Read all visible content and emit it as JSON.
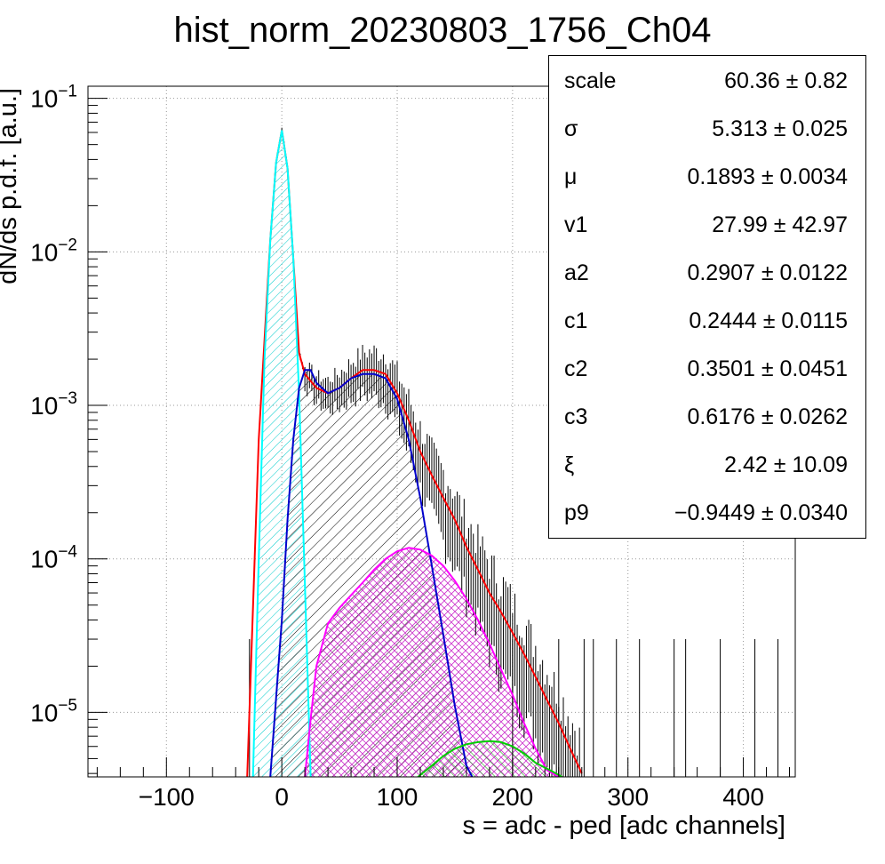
{
  "title": "hist_norm_20230803_1756_Ch04",
  "chart_data": {
    "type": "histogram",
    "title": "hist_norm_20230803_1756_Ch04",
    "xlabel": "s = adc - ped [adc channels]",
    "ylabel": "dN/ds p.d.f. [a.u.]",
    "x_range": [
      -168,
      445
    ],
    "y_range": [
      3.8e-06,
      0.12
    ],
    "y_log": true,
    "grid": true,
    "x_ticks": [
      -100,
      0,
      100,
      200,
      300,
      400
    ],
    "x_tick_labels": [
      "−100",
      "0",
      "100",
      "200",
      "300",
      "400"
    ],
    "y_ticks": [
      1e-05,
      0.0001,
      0.001,
      0.01,
      0.1
    ],
    "y_tick_labels": [
      {
        "base": "10",
        "exp": "−5"
      },
      {
        "base": "10",
        "exp": "−4"
      },
      {
        "base": "10",
        "exp": "−3"
      },
      {
        "base": "10",
        "exp": "−2"
      },
      {
        "base": "10",
        "exp": "−1"
      }
    ],
    "series": [
      {
        "color": "#ff0000",
        "style": "line",
        "x": [
          -30,
          -20,
          -10,
          -5,
          0,
          5,
          10,
          15,
          20,
          30,
          40,
          50,
          60,
          70,
          80,
          90,
          100,
          110,
          120,
          130,
          140,
          150,
          160,
          170,
          180,
          190,
          200,
          210,
          220,
          230,
          240,
          250,
          260
        ],
        "y": [
          3.8e-06,
          0.0006,
          0.012,
          0.038,
          0.062,
          0.035,
          0.009,
          0.0022,
          0.0016,
          0.0013,
          0.0012,
          0.0013,
          0.0015,
          0.0017,
          0.0017,
          0.0016,
          0.0012,
          0.0008,
          0.0005,
          0.00035,
          0.00025,
          0.00018,
          0.00012,
          8.5e-05,
          6e-05,
          4.5e-05,
          3.3e-05,
          2.4e-05,
          1.7e-05,
          1.2e-05,
          8.5e-06,
          5.8e-06,
          4e-06
        ]
      },
      {
        "color": "#00ffff",
        "style": "filled",
        "hatch": true,
        "x": [
          -25,
          -20,
          -15,
          -10,
          -5,
          0,
          5,
          10,
          15,
          20,
          25
        ],
        "y": [
          3.8e-06,
          0.0001,
          0.002,
          0.012,
          0.038,
          0.062,
          0.035,
          0.009,
          0.0012,
          7e-05,
          3.8e-06
        ]
      },
      {
        "color": "#0000cc",
        "style": "filled",
        "hatch": true,
        "x": [
          -10,
          0,
          5,
          10,
          15,
          20,
          25,
          30,
          40,
          50,
          60,
          70,
          80,
          90,
          100,
          110,
          120,
          130,
          140,
          150,
          160,
          165
        ],
        "y": [
          3.8e-06,
          4e-05,
          0.00018,
          0.0006,
          0.0013,
          0.0017,
          0.0017,
          0.0014,
          0.0012,
          0.0013,
          0.0015,
          0.0016,
          0.0016,
          0.0015,
          0.0011,
          0.0006,
          0.00025,
          9e-05,
          3.2e-05,
          1.1e-05,
          4.5e-06,
          3.8e-06
        ]
      },
      {
        "color": "#ff00ff",
        "style": "filled",
        "hatch": true,
        "x": [
          20,
          25,
          30,
          40,
          50,
          60,
          70,
          80,
          90,
          100,
          110,
          120,
          130,
          140,
          150,
          160,
          170,
          180,
          190,
          200,
          210,
          220,
          230,
          240
        ],
        "y": [
          3.8e-06,
          9e-06,
          2e-05,
          3.8e-05,
          4.8e-05,
          5.8e-05,
          7e-05,
          8.5e-05,
          0.0001,
          0.000112,
          0.000118,
          0.000115,
          0.000105,
          9e-05,
          7.2e-05,
          5.5e-05,
          4e-05,
          2.8e-05,
          1.9e-05,
          1.3e-05,
          8.5e-06,
          5.8e-06,
          4.2e-06,
          3.8e-06
        ]
      },
      {
        "color": "#00cc00",
        "style": "filled",
        "hatch": true,
        "x": [
          118,
          130,
          140,
          150,
          160,
          170,
          180,
          190,
          200,
          210,
          220,
          235,
          243
        ],
        "y": [
          3.8e-06,
          4.5e-06,
          5.2e-06,
          5.8e-06,
          6.2e-06,
          6.4e-06,
          6.5e-06,
          6.4e-06,
          6e-06,
          5.4e-06,
          4.7e-06,
          4.1e-06,
          3.8e-06
        ]
      }
    ]
  },
  "stats": {
    "rows": [
      {
        "name": "scale",
        "value": "60.36 ± 0.82"
      },
      {
        "name": "σ",
        "value": "5.313 ± 0.025"
      },
      {
        "name": "μ",
        "value": "0.1893 ± 0.0034"
      },
      {
        "name": "v1",
        "value": "27.99 ± 42.97"
      },
      {
        "name": "a2",
        "value": "0.2907 ± 0.0122"
      },
      {
        "name": "c1",
        "value": "0.2444 ± 0.0115"
      },
      {
        "name": "c2",
        "value": "0.3501 ± 0.0451"
      },
      {
        "name": "c3",
        "value": "0.6176 ± 0.0262"
      },
      {
        "name": "ξ",
        "value": "2.42 ± 10.09"
      },
      {
        "name": "p9",
        "value": "−0.9449 ± 0.0340"
      }
    ]
  }
}
